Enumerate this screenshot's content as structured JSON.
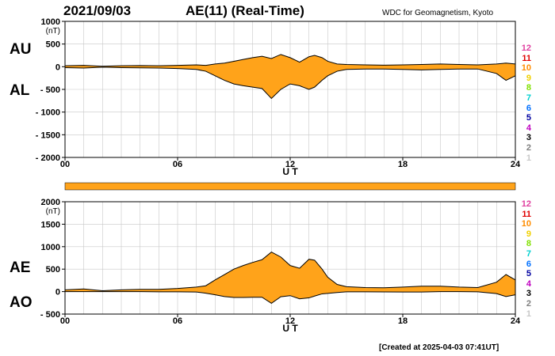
{
  "header": {
    "date": "2021/09/03",
    "title": "AE(11) (Real-Time)",
    "source": "WDC for Geomagnetism, Kyoto"
  },
  "footer": "[Created at 2025-04-03 07:41UT]",
  "legend": {
    "labels": [
      "12",
      "11",
      "10",
      "9",
      "8",
      "7",
      "6",
      "5",
      "4",
      "3",
      "2",
      "1"
    ],
    "colors": [
      "#e040a0",
      "#e00000",
      "#ff8c00",
      "#f0d000",
      "#80e000",
      "#00d0d0",
      "#0070ff",
      "#0000a0",
      "#c000c0",
      "#000000",
      "#808080",
      "#c8c8c8"
    ]
  },
  "fill_color": "#ffa31a",
  "chart_data": [
    {
      "type": "area",
      "name": "AU/AL",
      "series_labels": [
        "AU",
        "AL"
      ],
      "unit_label": "(nT)",
      "xlabel": "U T",
      "xticks": [
        "00",
        "06",
        "12",
        "18",
        "24"
      ],
      "xlim": [
        0,
        24
      ],
      "ylim": [
        -2000,
        1000
      ],
      "yticks": [
        1000,
        500,
        0,
        -500,
        -1000,
        -1500,
        -2000
      ],
      "yticklabels": [
        "1000",
        "500",
        "0",
        "- 500",
        "- 1000",
        "- 1500",
        "- 2000"
      ],
      "grid": true,
      "x": [
        0,
        1,
        2,
        3,
        4,
        5,
        6,
        7,
        7.5,
        8,
        8.5,
        9,
        9.5,
        10,
        10.5,
        11,
        11.5,
        12,
        12.5,
        13,
        13.3,
        13.7,
        14,
        14.5,
        15,
        16,
        17,
        18,
        19,
        20,
        21,
        22,
        23,
        23.5,
        24
      ],
      "series": [
        {
          "name": "AU",
          "values": [
            20,
            30,
            10,
            20,
            25,
            20,
            30,
            40,
            30,
            60,
            80,
            120,
            160,
            200,
            230,
            180,
            270,
            200,
            100,
            220,
            250,
            200,
            120,
            60,
            50,
            40,
            35,
            40,
            50,
            60,
            50,
            40,
            60,
            80,
            60
          ]
        },
        {
          "name": "AL",
          "values": [
            -20,
            -30,
            -10,
            -20,
            -25,
            -30,
            -40,
            -60,
            -100,
            -200,
            -300,
            -380,
            -420,
            -450,
            -480,
            -700,
            -500,
            -380,
            -420,
            -500,
            -450,
            -300,
            -200,
            -100,
            -60,
            -50,
            -50,
            -60,
            -70,
            -60,
            -50,
            -50,
            -150,
            -300,
            -200
          ]
        }
      ]
    },
    {
      "type": "area",
      "name": "AE/AO",
      "series_labels": [
        "AE",
        "AO"
      ],
      "unit_label": "(nT)",
      "xlabel": "U T",
      "xticks": [
        "00",
        "06",
        "12",
        "18",
        "24"
      ],
      "xlim": [
        0,
        24
      ],
      "ylim": [
        -500,
        2000
      ],
      "yticks": [
        2000,
        1500,
        1000,
        500,
        0,
        -500
      ],
      "yticklabels": [
        "2000",
        "1500",
        "1000",
        "500",
        "0",
        "- 500"
      ],
      "grid": true,
      "x": [
        0,
        1,
        2,
        3,
        4,
        5,
        6,
        7,
        7.5,
        8,
        8.5,
        9,
        9.5,
        10,
        10.5,
        11,
        11.5,
        12,
        12.5,
        13,
        13.3,
        13.7,
        14,
        14.5,
        15,
        16,
        17,
        18,
        19,
        20,
        21,
        22,
        23,
        23.5,
        24
      ],
      "series": [
        {
          "name": "AE",
          "values": [
            40,
            60,
            20,
            40,
            50,
            50,
            70,
            100,
            130,
            260,
            380,
            500,
            580,
            650,
            710,
            880,
            770,
            580,
            520,
            720,
            700,
            500,
            320,
            160,
            110,
            90,
            85,
            100,
            120,
            120,
            100,
            90,
            210,
            380,
            260
          ]
        },
        {
          "name": "AO",
          "values": [
            0,
            0,
            0,
            0,
            0,
            -5,
            -5,
            -10,
            -35,
            -70,
            -110,
            -130,
            -130,
            -125,
            -125,
            -260,
            -115,
            -90,
            -160,
            -140,
            -100,
            -50,
            -40,
            -20,
            -5,
            -5,
            -8,
            -10,
            -10,
            0,
            0,
            -5,
            -45,
            -110,
            -70
          ]
        }
      ]
    }
  ]
}
